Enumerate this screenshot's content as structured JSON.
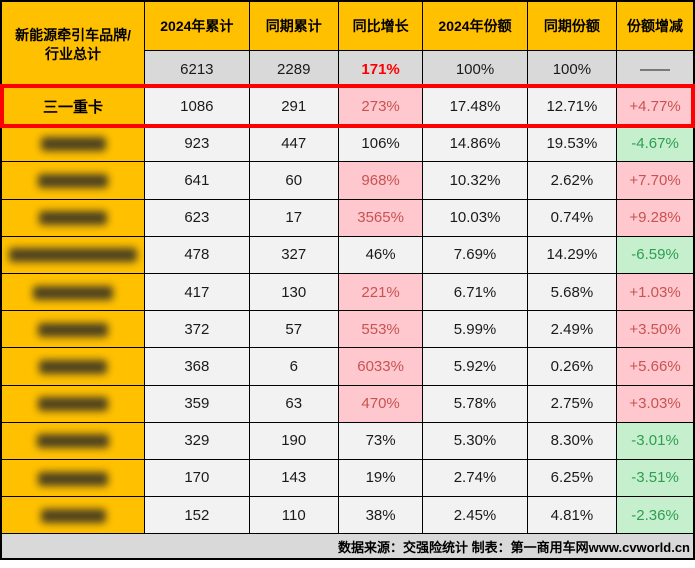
{
  "colors": {
    "header_yellow": "#FFC000",
    "total_row_gray": "#D9D9D9",
    "cell_bg": "#F2F2F2",
    "hot_pink_bg": "#FFC7CE",
    "hot_pink_text": "#C75450",
    "good_green_bg": "#C6EFCE",
    "good_green_text": "#2E9E50",
    "total_growth_red": "#FF0000",
    "highlight_border_red": "#FF0000"
  },
  "header": {
    "brand_line1": "新能源牵引车品牌/",
    "brand_line2": "行业总计",
    "columns": [
      "2024年累计",
      "同期累计",
      "同比增长",
      "2024年份额",
      "同期份额",
      "份额增减"
    ]
  },
  "total_row": {
    "cum2024": "6213",
    "cum_prev": "2289",
    "growth": "171%",
    "share2024": "100%",
    "share_prev": "100%",
    "share_change": "——"
  },
  "rows": [
    {
      "name": "三一重卡",
      "blurred": false,
      "highlighted": true,
      "blur_width": 0,
      "values": [
        "1086",
        "291",
        "273%",
        "17.48%",
        "12.71%",
        "+4.77%"
      ],
      "growth_hot": true,
      "change": "up"
    },
    {
      "name": "",
      "blurred": true,
      "highlighted": false,
      "blur_width": 65,
      "values": [
        "923",
        "447",
        "106%",
        "14.86%",
        "19.53%",
        "-4.67%"
      ],
      "growth_hot": false,
      "change": "down"
    },
    {
      "name": "",
      "blurred": true,
      "highlighted": false,
      "blur_width": 70,
      "values": [
        "641",
        "60",
        "968%",
        "10.32%",
        "2.62%",
        "+7.70%"
      ],
      "growth_hot": true,
      "change": "up"
    },
    {
      "name": "",
      "blurred": true,
      "highlighted": false,
      "blur_width": 68,
      "values": [
        "623",
        "17",
        "3565%",
        "10.03%",
        "0.74%",
        "+9.28%"
      ],
      "growth_hot": true,
      "change": "up"
    },
    {
      "name": "",
      "blurred": true,
      "highlighted": false,
      "blur_width": 128,
      "values": [
        "478",
        "327",
        "46%",
        "7.69%",
        "14.29%",
        "-6.59%"
      ],
      "growth_hot": false,
      "change": "down"
    },
    {
      "name": "",
      "blurred": true,
      "highlighted": false,
      "blur_width": 80,
      "values": [
        "417",
        "130",
        "221%",
        "6.71%",
        "5.68%",
        "+1.03%"
      ],
      "growth_hot": true,
      "change": "up"
    },
    {
      "name": "",
      "blurred": true,
      "highlighted": false,
      "blur_width": 70,
      "values": [
        "372",
        "57",
        "553%",
        "5.99%",
        "2.49%",
        "+3.50%"
      ],
      "growth_hot": true,
      "change": "up"
    },
    {
      "name": "",
      "blurred": true,
      "highlighted": false,
      "blur_width": 68,
      "values": [
        "368",
        "6",
        "6033%",
        "5.92%",
        "0.26%",
        "+5.66%"
      ],
      "growth_hot": true,
      "change": "up"
    },
    {
      "name": "",
      "blurred": true,
      "highlighted": false,
      "blur_width": 70,
      "values": [
        "359",
        "63",
        "470%",
        "5.78%",
        "2.75%",
        "+3.03%"
      ],
      "growth_hot": true,
      "change": "up"
    },
    {
      "name": "",
      "blurred": true,
      "highlighted": false,
      "blur_width": 72,
      "values": [
        "329",
        "190",
        "73%",
        "5.30%",
        "8.30%",
        "-3.01%"
      ],
      "growth_hot": false,
      "change": "down"
    },
    {
      "name": "",
      "blurred": true,
      "highlighted": false,
      "blur_width": 70,
      "values": [
        "170",
        "143",
        "19%",
        "2.74%",
        "6.25%",
        "-3.51%"
      ],
      "growth_hot": false,
      "change": "down"
    },
    {
      "name": "",
      "blurred": true,
      "highlighted": false,
      "blur_width": 65,
      "values": [
        "152",
        "110",
        "38%",
        "2.45%",
        "4.81%",
        "-2.36%"
      ],
      "growth_hot": false,
      "change": "down"
    }
  ],
  "footer": {
    "text": "数据来源：交强险统计 制表：第一商用车网www.cvworld.cn"
  },
  "chart_data": {
    "type": "table",
    "title": "新能源牵引车品牌销量表（2024年累计 vs 同期）",
    "columns": [
      "新能源牵引车品牌/行业总计",
      "2024年累计",
      "同期累计",
      "同比增长",
      "2024年份额",
      "同期份额",
      "份额增减"
    ],
    "rows": [
      [
        "行业总计",
        6213,
        2289,
        "171%",
        "100%",
        "100%",
        "——"
      ],
      [
        "三一重卡",
        1086,
        291,
        "273%",
        "17.48%",
        "12.71%",
        "+4.77%"
      ],
      [
        "(blurred)",
        923,
        447,
        "106%",
        "14.86%",
        "19.53%",
        "-4.67%"
      ],
      [
        "(blurred)",
        641,
        60,
        "968%",
        "10.32%",
        "2.62%",
        "+7.70%"
      ],
      [
        "(blurred)",
        623,
        17,
        "3565%",
        "10.03%",
        "0.74%",
        "+9.28%"
      ],
      [
        "(blurred)",
        478,
        327,
        "46%",
        "7.69%",
        "14.29%",
        "-6.59%"
      ],
      [
        "(blurred)",
        417,
        130,
        "221%",
        "6.71%",
        "5.68%",
        "+1.03%"
      ],
      [
        "(blurred)",
        372,
        57,
        "553%",
        "5.99%",
        "2.49%",
        "+3.50%"
      ],
      [
        "(blurred)",
        368,
        6,
        "6033%",
        "5.92%",
        "0.26%",
        "+5.66%"
      ],
      [
        "(blurred)",
        359,
        63,
        "470%",
        "5.78%",
        "2.75%",
        "+3.03%"
      ],
      [
        "(blurred)",
        329,
        190,
        "73%",
        "5.30%",
        "8.30%",
        "-3.01%"
      ],
      [
        "(blurred)",
        170,
        143,
        "19%",
        "2.74%",
        "6.25%",
        "-3.51%"
      ],
      [
        "(blurred)",
        152,
        110,
        "38%",
        "2.45%",
        "4.81%",
        "-2.36%"
      ]
    ],
    "annotations": [
      "三一重卡 row outlined in red",
      "数据来源：交强险统计 制表：第一商用车网www.cvworld.cn"
    ]
  }
}
